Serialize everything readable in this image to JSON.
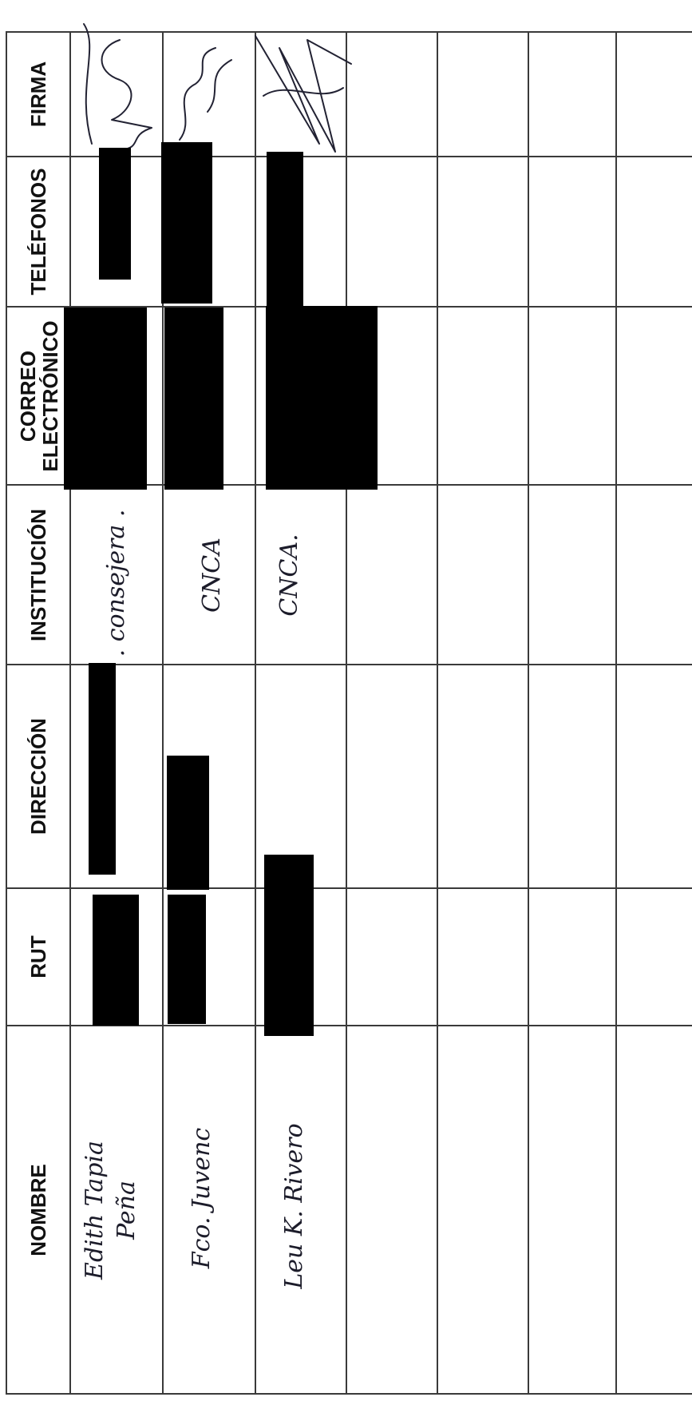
{
  "form": {
    "headers": {
      "nombre": "NOMBRE",
      "rut": "RUT",
      "direccion": "DIRECCIÓN",
      "institucion": "INSTITUCIÓN",
      "correo_line1": "CORREO",
      "correo_line2": "ELECTRÓNICO",
      "telefonos": "TELÉFONOS",
      "firma": "FIRMA"
    },
    "rows": [
      {
        "nombre_line1": "Edith Tapia",
        "nombre_line2": "Peña",
        "institucion": ". consejera ."
      },
      {
        "nombre_line1": "Fco. Juvenc",
        "nombre_line2": "",
        "institucion": "CNCA"
      },
      {
        "nombre_line1": "Leu K. Rivero",
        "nombre_line2": "",
        "institucion": "CNCA."
      }
    ]
  }
}
